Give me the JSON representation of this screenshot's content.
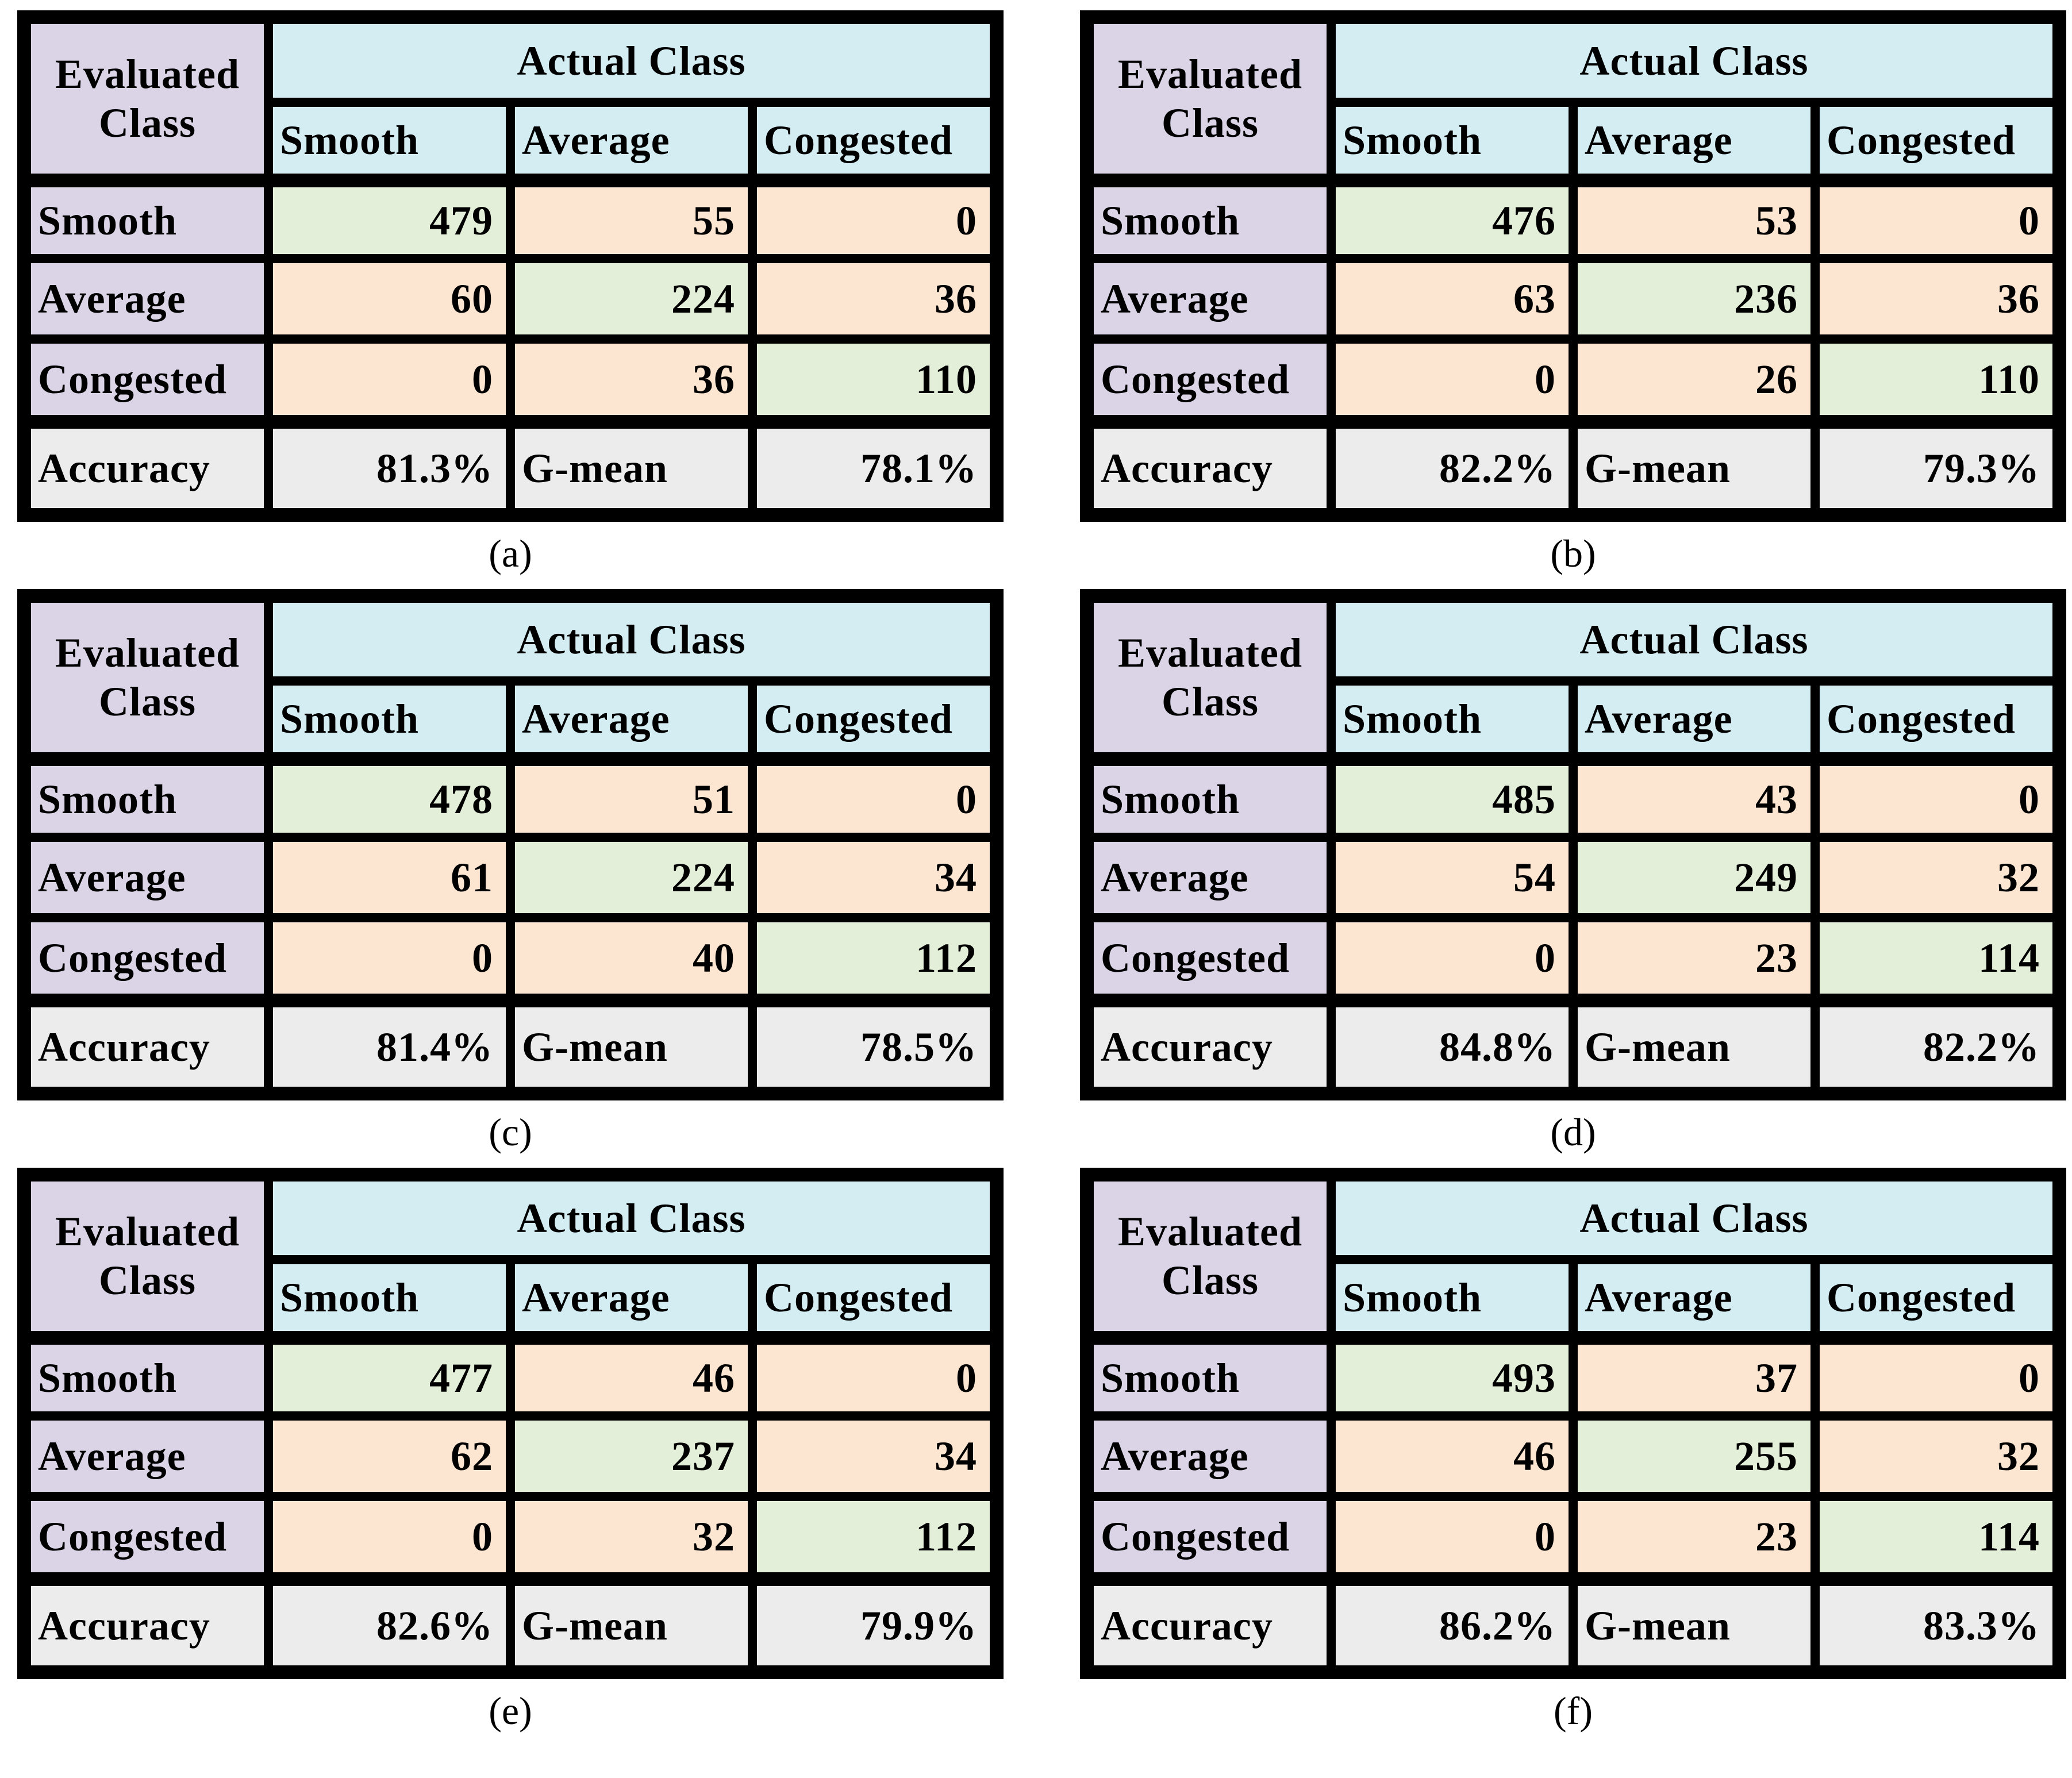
{
  "colors": {
    "header_cyan": "#d3edf3",
    "label_lavender": "#dbd4e7",
    "diagonal_green": "#e4efda",
    "offdiagonal_orange": "#fce5d1",
    "footer_gray": "#ececec",
    "border_black": "#000000"
  },
  "tables": [
    {
      "caption": "(a)",
      "corner_line1": "Evaluated",
      "corner_line2": "Class",
      "actual_label": "Actual Class",
      "col_headers": [
        "Smooth",
        "Average",
        "Congested"
      ],
      "rows": [
        {
          "label": "Smooth",
          "values": [
            "479",
            "55",
            "0"
          ]
        },
        {
          "label": "Average",
          "values": [
            "60",
            "224",
            "36"
          ]
        },
        {
          "label": "Congested",
          "values": [
            "0",
            "36",
            "110"
          ]
        }
      ],
      "accuracy_label": "Accuracy",
      "accuracy_value": "81.3%",
      "gmean_label": "G-mean",
      "gmean_value": "78.1%"
    },
    {
      "caption": "(b)",
      "corner_line1": "Evaluated",
      "corner_line2": "Class",
      "actual_label": "Actual Class",
      "col_headers": [
        "Smooth",
        "Average",
        "Congested"
      ],
      "rows": [
        {
          "label": "Smooth",
          "values": [
            "476",
            "53",
            "0"
          ]
        },
        {
          "label": "Average",
          "values": [
            "63",
            "236",
            "36"
          ]
        },
        {
          "label": "Congested",
          "values": [
            "0",
            "26",
            "110"
          ]
        }
      ],
      "accuracy_label": "Accuracy",
      "accuracy_value": "82.2%",
      "gmean_label": "G-mean",
      "gmean_value": "79.3%"
    },
    {
      "caption": "(c)",
      "corner_line1": "Evaluated",
      "corner_line2": "Class",
      "actual_label": "Actual Class",
      "col_headers": [
        "Smooth",
        "Average",
        "Congested"
      ],
      "rows": [
        {
          "label": "Smooth",
          "values": [
            "478",
            "51",
            "0"
          ]
        },
        {
          "label": "Average",
          "values": [
            "61",
            "224",
            "34"
          ]
        },
        {
          "label": "Congested",
          "values": [
            "0",
            "40",
            "112"
          ]
        }
      ],
      "accuracy_label": "Accuracy",
      "accuracy_value": "81.4%",
      "gmean_label": "G-mean",
      "gmean_value": "78.5%"
    },
    {
      "caption": "(d)",
      "corner_line1": "Evaluated",
      "corner_line2": "Class",
      "actual_label": "Actual Class",
      "col_headers": [
        "Smooth",
        "Average",
        "Congested"
      ],
      "rows": [
        {
          "label": "Smooth",
          "values": [
            "485",
            "43",
            "0"
          ]
        },
        {
          "label": "Average",
          "values": [
            "54",
            "249",
            "32"
          ]
        },
        {
          "label": "Congested",
          "values": [
            "0",
            "23",
            "114"
          ]
        }
      ],
      "accuracy_label": "Accuracy",
      "accuracy_value": "84.8%",
      "gmean_label": "G-mean",
      "gmean_value": "82.2%"
    },
    {
      "caption": "(e)",
      "corner_line1": "Evaluated",
      "corner_line2": "Class",
      "actual_label": "Actual Class",
      "col_headers": [
        "Smooth",
        "Average",
        "Congested"
      ],
      "rows": [
        {
          "label": "Smooth",
          "values": [
            "477",
            "46",
            "0"
          ]
        },
        {
          "label": "Average",
          "values": [
            "62",
            "237",
            "34"
          ]
        },
        {
          "label": "Congested",
          "values": [
            "0",
            "32",
            "112"
          ]
        }
      ],
      "accuracy_label": "Accuracy",
      "accuracy_value": "82.6%",
      "gmean_label": "G-mean",
      "gmean_value": "79.9%"
    },
    {
      "caption": "(f)",
      "corner_line1": "Evaluated",
      "corner_line2": "Class",
      "actual_label": "Actual Class",
      "col_headers": [
        "Smooth",
        "Average",
        "Congested"
      ],
      "rows": [
        {
          "label": "Smooth",
          "values": [
            "493",
            "37",
            "0"
          ]
        },
        {
          "label": "Average",
          "values": [
            "46",
            "255",
            "32"
          ]
        },
        {
          "label": "Congested",
          "values": [
            "0",
            "23",
            "114"
          ]
        }
      ],
      "accuracy_label": "Accuracy",
      "accuracy_value": "86.2%",
      "gmean_label": "G-mean",
      "gmean_value": "83.3%"
    }
  ]
}
